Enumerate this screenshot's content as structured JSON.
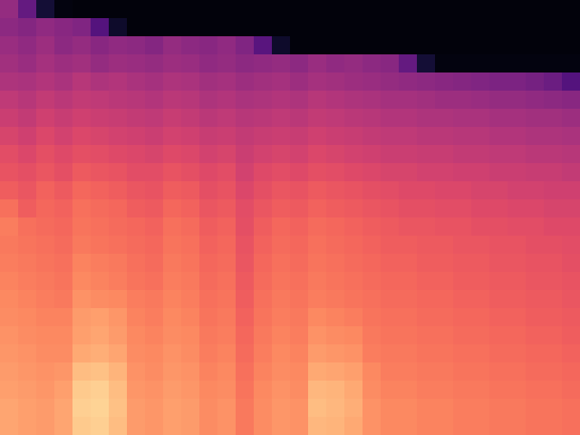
{
  "chart_data": {
    "type": "heatmap",
    "color": "magma",
    "zlim": [
      0,
      1
    ],
    "tick_labels": false,
    "cells": [
      [
        0.42,
        0.3,
        0.1,
        0.03,
        0.02,
        0.02,
        0.02,
        0.02,
        0.02,
        0.02,
        0.02,
        0.02,
        0.02,
        0.02,
        0.02,
        0.02,
        0.02,
        0.02,
        0.02,
        0.02,
        0.02,
        0.02,
        0.02,
        0.02,
        0.02,
        0.02,
        0.02,
        0.02,
        0.02,
        0.02,
        0.02,
        0.02
      ],
      [
        0.4,
        0.38,
        0.41,
        0.39,
        0.37,
        0.26,
        0.08,
        0.02,
        0.02,
        0.02,
        0.02,
        0.02,
        0.02,
        0.02,
        0.02,
        0.02,
        0.02,
        0.02,
        0.02,
        0.02,
        0.02,
        0.02,
        0.02,
        0.02,
        0.02,
        0.02,
        0.02,
        0.02,
        0.02,
        0.02,
        0.02,
        0.02
      ],
      [
        0.43,
        0.41,
        0.44,
        0.4,
        0.42,
        0.39,
        0.41,
        0.4,
        0.38,
        0.42,
        0.4,
        0.39,
        0.41,
        0.37,
        0.27,
        0.08,
        0.02,
        0.02,
        0.02,
        0.02,
        0.02,
        0.02,
        0.02,
        0.02,
        0.02,
        0.02,
        0.02,
        0.02,
        0.02,
        0.02,
        0.02,
        0.02
      ],
      [
        0.45,
        0.43,
        0.46,
        0.44,
        0.45,
        0.42,
        0.44,
        0.43,
        0.42,
        0.44,
        0.43,
        0.41,
        0.42,
        0.4,
        0.41,
        0.42,
        0.4,
        0.43,
        0.41,
        0.42,
        0.4,
        0.39,
        0.3,
        0.1,
        0.03,
        0.03,
        0.03,
        0.03,
        0.03,
        0.03,
        0.03,
        0.03
      ],
      [
        0.48,
        0.47,
        0.49,
        0.47,
        0.5,
        0.48,
        0.49,
        0.47,
        0.46,
        0.48,
        0.47,
        0.45,
        0.46,
        0.44,
        0.45,
        0.46,
        0.44,
        0.46,
        0.45,
        0.44,
        0.43,
        0.42,
        0.41,
        0.4,
        0.39,
        0.38,
        0.37,
        0.36,
        0.36,
        0.34,
        0.32,
        0.26
      ],
      [
        0.52,
        0.5,
        0.53,
        0.51,
        0.53,
        0.52,
        0.51,
        0.5,
        0.49,
        0.51,
        0.5,
        0.48,
        0.49,
        0.47,
        0.48,
        0.49,
        0.48,
        0.5,
        0.49,
        0.48,
        0.47,
        0.46,
        0.46,
        0.45,
        0.44,
        0.44,
        0.43,
        0.42,
        0.42,
        0.41,
        0.4,
        0.39
      ],
      [
        0.55,
        0.53,
        0.56,
        0.54,
        0.56,
        0.55,
        0.54,
        0.53,
        0.52,
        0.54,
        0.53,
        0.51,
        0.52,
        0.5,
        0.51,
        0.52,
        0.51,
        0.53,
        0.52,
        0.51,
        0.5,
        0.49,
        0.49,
        0.48,
        0.48,
        0.47,
        0.47,
        0.46,
        0.46,
        0.45,
        0.45,
        0.44
      ],
      [
        0.58,
        0.56,
        0.59,
        0.57,
        0.59,
        0.58,
        0.57,
        0.56,
        0.55,
        0.57,
        0.56,
        0.54,
        0.55,
        0.53,
        0.54,
        0.55,
        0.54,
        0.56,
        0.55,
        0.54,
        0.53,
        0.52,
        0.52,
        0.51,
        0.51,
        0.5,
        0.5,
        0.49,
        0.49,
        0.48,
        0.48,
        0.47
      ],
      [
        0.61,
        0.59,
        0.62,
        0.6,
        0.62,
        0.61,
        0.6,
        0.59,
        0.58,
        0.6,
        0.59,
        0.57,
        0.58,
        0.55,
        0.57,
        0.58,
        0.57,
        0.59,
        0.58,
        0.57,
        0.56,
        0.55,
        0.55,
        0.54,
        0.54,
        0.53,
        0.53,
        0.52,
        0.52,
        0.51,
        0.51,
        0.5
      ],
      [
        0.63,
        0.62,
        0.64,
        0.62,
        0.65,
        0.64,
        0.63,
        0.61,
        0.61,
        0.63,
        0.62,
        0.6,
        0.61,
        0.57,
        0.6,
        0.61,
        0.6,
        0.62,
        0.61,
        0.6,
        0.59,
        0.58,
        0.58,
        0.57,
        0.57,
        0.56,
        0.56,
        0.55,
        0.55,
        0.54,
        0.54,
        0.53
      ],
      [
        0.66,
        0.64,
        0.67,
        0.65,
        0.68,
        0.67,
        0.66,
        0.64,
        0.63,
        0.66,
        0.65,
        0.62,
        0.63,
        0.59,
        0.62,
        0.64,
        0.63,
        0.65,
        0.64,
        0.63,
        0.62,
        0.61,
        0.6,
        0.6,
        0.59,
        0.59,
        0.58,
        0.58,
        0.57,
        0.57,
        0.56,
        0.56
      ],
      [
        0.7,
        0.66,
        0.68,
        0.67,
        0.7,
        0.69,
        0.68,
        0.66,
        0.65,
        0.68,
        0.67,
        0.64,
        0.65,
        0.61,
        0.64,
        0.66,
        0.65,
        0.67,
        0.66,
        0.65,
        0.64,
        0.63,
        0.62,
        0.62,
        0.61,
        0.61,
        0.6,
        0.6,
        0.59,
        0.59,
        0.58,
        0.58
      ],
      [
        0.73,
        0.7,
        0.69,
        0.68,
        0.71,
        0.7,
        0.69,
        0.68,
        0.67,
        0.7,
        0.69,
        0.66,
        0.67,
        0.62,
        0.66,
        0.68,
        0.67,
        0.69,
        0.68,
        0.67,
        0.66,
        0.65,
        0.64,
        0.64,
        0.63,
        0.63,
        0.62,
        0.62,
        0.61,
        0.61,
        0.6,
        0.6
      ],
      [
        0.72,
        0.71,
        0.7,
        0.69,
        0.72,
        0.71,
        0.7,
        0.69,
        0.68,
        0.71,
        0.7,
        0.67,
        0.68,
        0.63,
        0.67,
        0.69,
        0.68,
        0.7,
        0.69,
        0.68,
        0.67,
        0.66,
        0.66,
        0.65,
        0.65,
        0.64,
        0.64,
        0.63,
        0.63,
        0.62,
        0.62,
        0.61
      ],
      [
        0.73,
        0.72,
        0.71,
        0.7,
        0.74,
        0.73,
        0.72,
        0.7,
        0.69,
        0.72,
        0.71,
        0.68,
        0.69,
        0.64,
        0.68,
        0.7,
        0.69,
        0.71,
        0.7,
        0.69,
        0.68,
        0.67,
        0.67,
        0.66,
        0.66,
        0.65,
        0.65,
        0.64,
        0.64,
        0.63,
        0.63,
        0.62
      ],
      [
        0.74,
        0.73,
        0.72,
        0.71,
        0.75,
        0.74,
        0.73,
        0.71,
        0.7,
        0.73,
        0.72,
        0.69,
        0.7,
        0.65,
        0.69,
        0.71,
        0.7,
        0.72,
        0.71,
        0.7,
        0.69,
        0.68,
        0.68,
        0.67,
        0.67,
        0.66,
        0.66,
        0.65,
        0.65,
        0.64,
        0.64,
        0.63
      ],
      [
        0.75,
        0.74,
        0.73,
        0.72,
        0.77,
        0.76,
        0.75,
        0.73,
        0.72,
        0.74,
        0.73,
        0.7,
        0.71,
        0.66,
        0.7,
        0.72,
        0.71,
        0.73,
        0.72,
        0.71,
        0.7,
        0.69,
        0.69,
        0.68,
        0.68,
        0.67,
        0.67,
        0.66,
        0.66,
        0.65,
        0.65,
        0.64
      ],
      [
        0.76,
        0.75,
        0.74,
        0.74,
        0.79,
        0.8,
        0.78,
        0.74,
        0.73,
        0.75,
        0.74,
        0.71,
        0.72,
        0.67,
        0.71,
        0.73,
        0.72,
        0.75,
        0.74,
        0.73,
        0.71,
        0.7,
        0.7,
        0.69,
        0.69,
        0.68,
        0.68,
        0.67,
        0.67,
        0.66,
        0.66,
        0.65
      ],
      [
        0.77,
        0.76,
        0.75,
        0.75,
        0.8,
        0.81,
        0.79,
        0.75,
        0.74,
        0.76,
        0.75,
        0.72,
        0.73,
        0.68,
        0.72,
        0.74,
        0.73,
        0.77,
        0.76,
        0.75,
        0.72,
        0.71,
        0.71,
        0.7,
        0.7,
        0.69,
        0.69,
        0.68,
        0.68,
        0.67,
        0.67,
        0.66
      ],
      [
        0.78,
        0.77,
        0.76,
        0.76,
        0.82,
        0.83,
        0.81,
        0.76,
        0.75,
        0.77,
        0.76,
        0.73,
        0.74,
        0.69,
        0.73,
        0.75,
        0.74,
        0.79,
        0.78,
        0.77,
        0.73,
        0.72,
        0.72,
        0.71,
        0.71,
        0.7,
        0.7,
        0.69,
        0.69,
        0.68,
        0.68,
        0.67
      ],
      [
        0.79,
        0.78,
        0.77,
        0.78,
        0.86,
        0.87,
        0.84,
        0.77,
        0.76,
        0.78,
        0.77,
        0.74,
        0.75,
        0.7,
        0.74,
        0.76,
        0.75,
        0.82,
        0.81,
        0.8,
        0.75,
        0.73,
        0.73,
        0.72,
        0.72,
        0.71,
        0.71,
        0.7,
        0.7,
        0.69,
        0.69,
        0.68
      ],
      [
        0.8,
        0.79,
        0.78,
        0.8,
        0.89,
        0.9,
        0.86,
        0.78,
        0.77,
        0.79,
        0.78,
        0.75,
        0.76,
        0.71,
        0.75,
        0.77,
        0.76,
        0.85,
        0.84,
        0.82,
        0.76,
        0.74,
        0.74,
        0.73,
        0.73,
        0.72,
        0.72,
        0.71,
        0.71,
        0.7,
        0.7,
        0.69
      ],
      [
        0.81,
        0.8,
        0.79,
        0.81,
        0.9,
        0.91,
        0.87,
        0.79,
        0.78,
        0.8,
        0.79,
        0.76,
        0.77,
        0.72,
        0.76,
        0.78,
        0.77,
        0.86,
        0.85,
        0.83,
        0.77,
        0.75,
        0.75,
        0.74,
        0.74,
        0.73,
        0.73,
        0.72,
        0.72,
        0.71,
        0.71,
        0.7
      ],
      [
        0.81,
        0.8,
        0.79,
        0.81,
        0.89,
        0.9,
        0.86,
        0.79,
        0.78,
        0.8,
        0.79,
        0.76,
        0.77,
        0.72,
        0.76,
        0.78,
        0.77,
        0.85,
        0.84,
        0.82,
        0.77,
        0.75,
        0.75,
        0.74,
        0.74,
        0.73,
        0.73,
        0.72,
        0.72,
        0.71,
        0.71,
        0.7
      ]
    ]
  }
}
